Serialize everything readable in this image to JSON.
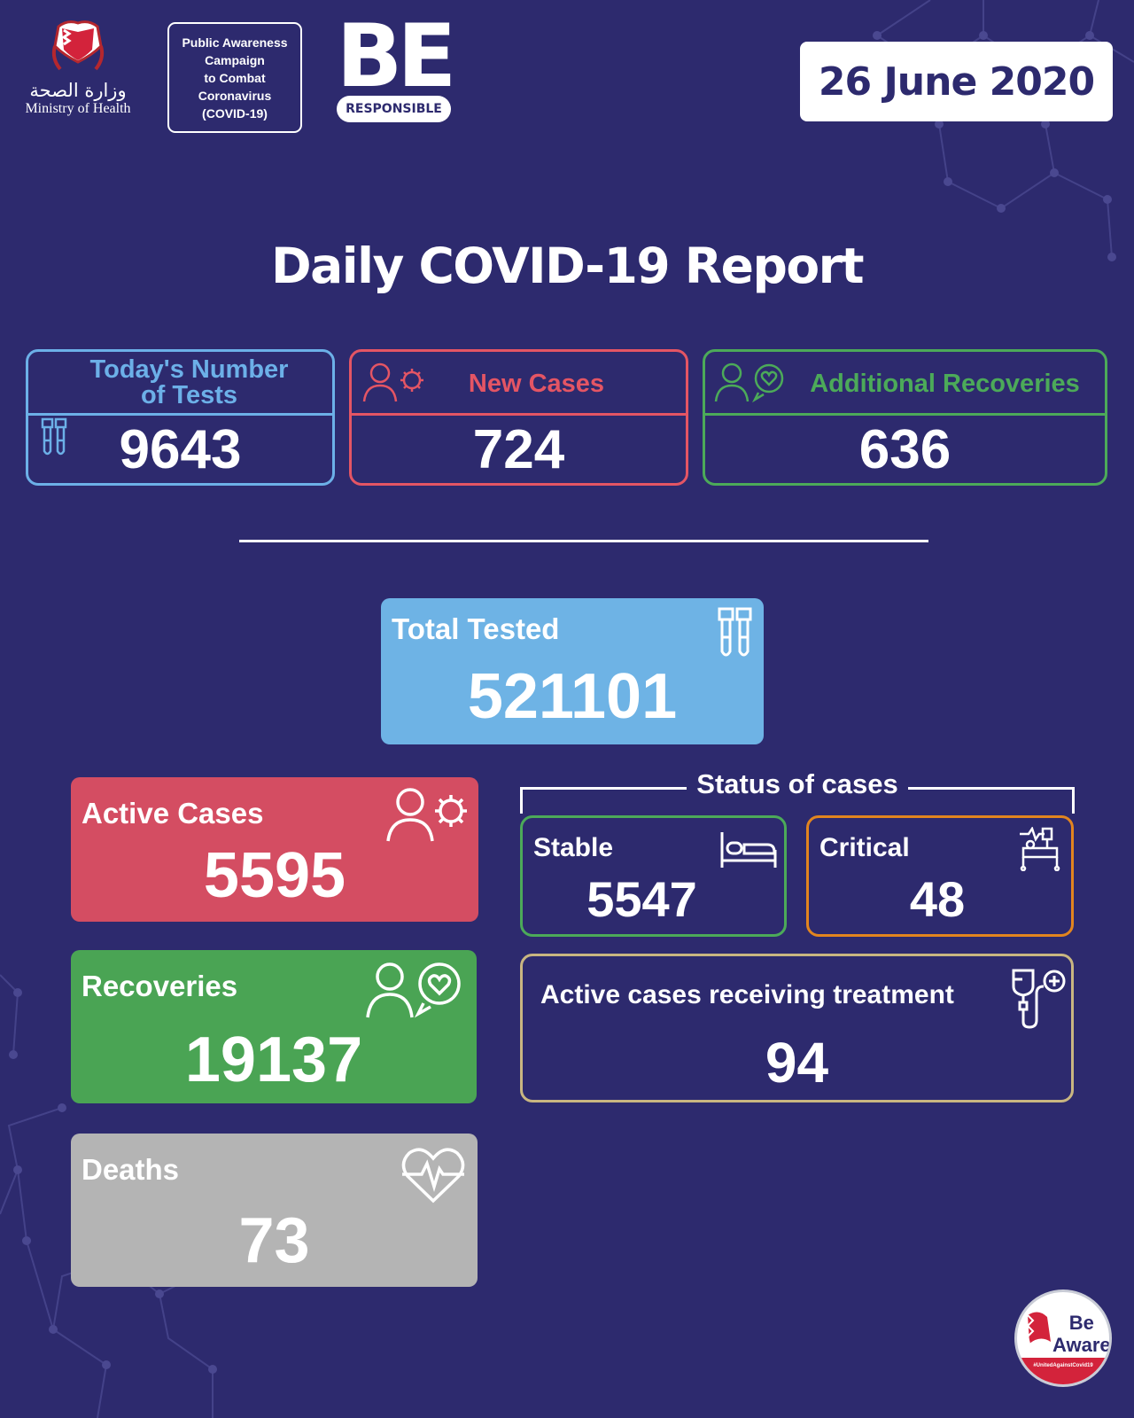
{
  "header": {
    "ministry_arabic": "وزارة الصحة",
    "ministry_english": "Ministry of Health",
    "campaign_text": "Public Awareness\nCampaign\nto Combat\nCoronavirus\n(COVID-19)",
    "be_word": "BE",
    "responsible_word": "RESPONSIBLE",
    "date": "26 June 2020"
  },
  "title": "Daily COVID-19 Report",
  "daily": {
    "tests": {
      "label": "Today's Number\nof Tests",
      "value": "9643",
      "icon": "test-tubes-icon",
      "color": "#6cb0e8"
    },
    "new_cases": {
      "label": "New Cases",
      "value": "724",
      "icon": "person-virus-icon",
      "color": "#e45564"
    },
    "recoveries": {
      "label": "Additional Recoveries",
      "value": "636",
      "icon": "person-heart-icon",
      "color": "#4caa59"
    }
  },
  "totals": {
    "total_tested": {
      "label": "Total Tested",
      "value": "521101",
      "icon": "test-tubes-icon",
      "color": "#6eb3e5"
    },
    "active_cases": {
      "label": "Active Cases",
      "value": "5595",
      "icon": "person-virus-icon",
      "color": "#d44d62"
    },
    "recoveries": {
      "label": "Recoveries",
      "value": "19137",
      "icon": "person-heart-icon",
      "color": "#4aa454"
    },
    "deaths": {
      "label": "Deaths",
      "value": "73",
      "icon": "heartbeat-icon",
      "color": "#b4b4b4"
    }
  },
  "status": {
    "title": "Status of cases",
    "stable": {
      "label": "Stable",
      "value": "5547",
      "icon": "bed-icon",
      "color": "#4caa59"
    },
    "critical": {
      "label": "Critical",
      "value": "48",
      "icon": "icu-bed-icon",
      "color": "#e2851f"
    },
    "treatment": {
      "label": "Active cases receiving treatment",
      "value": "94",
      "icon": "iv-drip-icon",
      "color": "#c9b681"
    }
  },
  "badge": {
    "text": "Be\nAware",
    "hashtag": "#UnitedAgainstCovid19"
  },
  "background_color": "#2d2a6e"
}
